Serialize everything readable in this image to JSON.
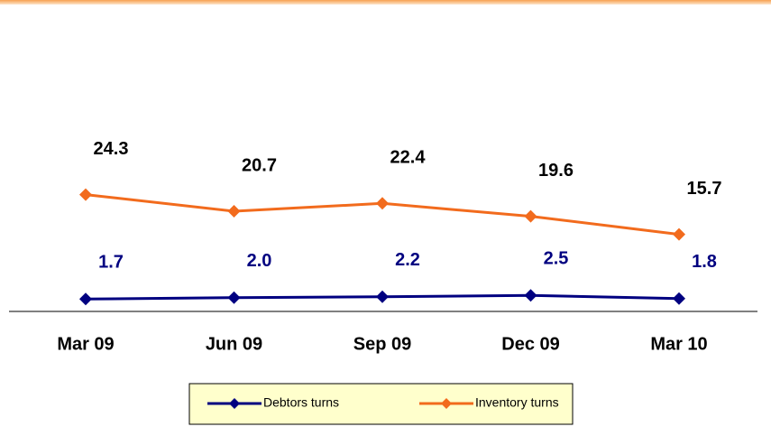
{
  "chart_data": {
    "type": "line",
    "categories": [
      "Mar 09",
      "Jun 09",
      "Sep 09",
      "Dec 09",
      "Mar 10"
    ],
    "series": [
      {
        "name": "Debtors turns",
        "color": "#000080",
        "values": [
          1.7,
          2.0,
          2.2,
          2.5,
          1.8
        ],
        "value_labels": [
          "1.7",
          "2.0",
          "2.2",
          "2.5",
          "1.8"
        ]
      },
      {
        "name": "Inventory turns",
        "color": "#f26b1d",
        "values": [
          24.3,
          20.7,
          22.4,
          19.6,
          15.7
        ],
        "value_labels": [
          "24.3",
          "20.7",
          "22.4",
          "19.6",
          "15.7"
        ]
      }
    ],
    "legend": "bottom"
  }
}
